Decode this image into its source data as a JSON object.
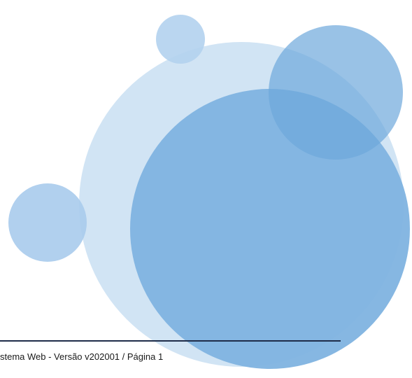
{
  "footer": {
    "text": "stema Web - Versão v202001 / Página 1"
  }
}
